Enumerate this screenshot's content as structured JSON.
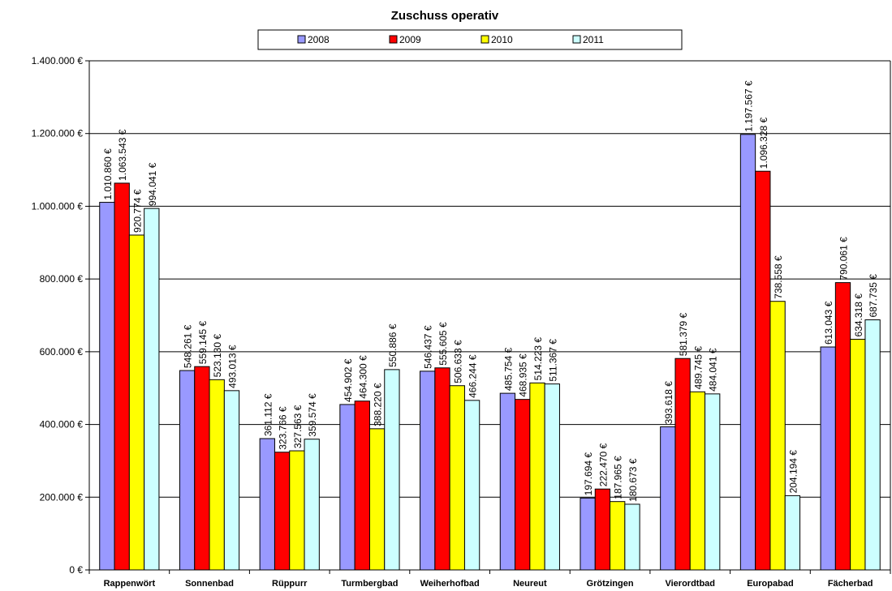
{
  "chart_data": {
    "type": "bar",
    "title": "Zuschuss operativ",
    "xlabel": "",
    "ylabel": "",
    "ylim": [
      0,
      1400000
    ],
    "yticks": [
      0,
      200000,
      400000,
      600000,
      800000,
      1000000,
      1200000,
      1400000
    ],
    "ytick_labels": [
      "0 €",
      "200.000 €",
      "400.000 €",
      "600.000 €",
      "800.000 €",
      "1.000.000 €",
      "1.200.000 €",
      "1.400.000 €"
    ],
    "grid": true,
    "legend_position": "top",
    "categories": [
      "Rappenwört",
      "Sonnenbad",
      "Rüppurr",
      "Turmbergbad",
      "Weiherhofbad",
      "Neureut",
      "Grötzingen",
      "Vierordtbad",
      "Europabad",
      "Fächerbad"
    ],
    "series": [
      {
        "name": "2008",
        "color": "#9999ff",
        "values": [
          1010860,
          548261,
          361112,
          454902,
          546437,
          485754,
          197694,
          393618,
          1197567,
          613043
        ],
        "labels": [
          "1.010.860 €",
          "548.261 €",
          "361.112 €",
          "454.902 €",
          "546.437 €",
          "485.754 €",
          "197.694 €",
          "393.618 €",
          "1.197.567 €",
          "613.043 €"
        ]
      },
      {
        "name": "2009",
        "color": "#ff0000",
        "values": [
          1063543,
          559145,
          323766,
          464300,
          555605,
          468935,
          222470,
          581379,
          1096328,
          790061
        ],
        "labels": [
          "1.063.543 €",
          "559.145 €",
          "323.766 €",
          "464.300 €",
          "555.605 €",
          "468.935 €",
          "222.470 €",
          "581.379 €",
          "1.096.328 €",
          "790.061 €"
        ]
      },
      {
        "name": "2010",
        "color": "#ffff00",
        "values": [
          920774,
          523130,
          327563,
          388220,
          506633,
          514223,
          187965,
          489745,
          738558,
          634318
        ],
        "labels": [
          "920.774 €",
          "523.130 €",
          "327.563 €",
          "388.220 €",
          "506.633 €",
          "514.223 €",
          "187.965 €",
          "489.745 €",
          "738.558 €",
          "634.318 €"
        ]
      },
      {
        "name": "2011",
        "color": "#ccffff",
        "values": [
          994041,
          493013,
          359574,
          550886,
          466244,
          511367,
          180673,
          484041,
          204194,
          687735
        ],
        "labels": [
          "994.041 €",
          "493.013 €",
          "359.574 €",
          "550.886 €",
          "466.244 €",
          "511.367 €",
          "180.673 €",
          "484.041 €",
          "204.194 €",
          "687.735 €"
        ]
      }
    ]
  }
}
